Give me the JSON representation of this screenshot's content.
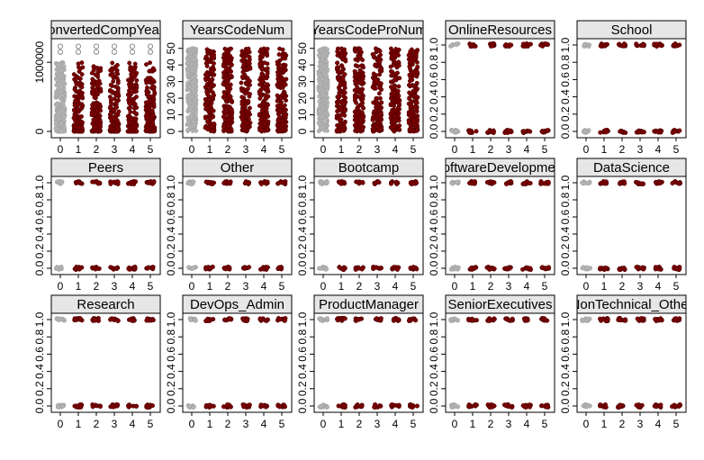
{
  "chart_data": {
    "type": "scatter",
    "layout": "3x5 small multiples",
    "x_ticks": [
      "0",
      "1",
      "2",
      "3",
      "4",
      "5"
    ],
    "colors": {
      "group0": "#b3b3b3",
      "groups1to5": "#7a0000",
      "strip": "#e6e6e6"
    },
    "panels": [
      {
        "title": "ConvertedCompYearly",
        "ylim": [
          0,
          1250000
        ],
        "ticks": [
          0,
          1000000
        ],
        "tick_labels": [
          "0",
          "1000000"
        ],
        "kind": "continuous",
        "max": 1000000,
        "outliers": [
          1150000,
          1230000
        ]
      },
      {
        "title": "YearsCodeNum",
        "ylim": [
          0,
          52
        ],
        "ticks": [
          0,
          10,
          20,
          30,
          40,
          50
        ],
        "tick_labels": [
          "0",
          "10",
          "20",
          "30",
          "40",
          "50"
        ],
        "kind": "continuous",
        "max": 50
      },
      {
        "title": "YearsCodeProNum",
        "ylim": [
          0,
          52
        ],
        "ticks": [
          0,
          10,
          20,
          30,
          40,
          50
        ],
        "tick_labels": [
          "0",
          "10",
          "20",
          "30",
          "40",
          "50"
        ],
        "kind": "continuous",
        "max": 50
      },
      {
        "title": "OnlineResources",
        "ylim": [
          0,
          1
        ],
        "ticks": [
          0,
          0.2,
          0.4,
          0.6,
          0.8,
          1
        ],
        "tick_labels": [
          "0.0",
          "0.2",
          "0.4",
          "0.6",
          "0.8",
          "1.0"
        ],
        "kind": "binary"
      },
      {
        "title": "School",
        "ylim": [
          0,
          1
        ],
        "ticks": [
          0,
          0.2,
          0.4,
          0.6,
          0.8,
          1
        ],
        "tick_labels": [
          "0.0",
          "0.2",
          "0.4",
          "0.6",
          "0.8",
          "1.0"
        ],
        "kind": "binary"
      },
      {
        "title": "Peers",
        "ylim": [
          0,
          1
        ],
        "ticks": [
          0,
          0.2,
          0.4,
          0.6,
          0.8,
          1
        ],
        "tick_labels": [
          "0.0",
          "0.2",
          "0.4",
          "0.6",
          "0.8",
          "1.0"
        ],
        "kind": "binary"
      },
      {
        "title": "Other",
        "ylim": [
          0,
          1
        ],
        "ticks": [
          0,
          0.2,
          0.4,
          0.6,
          0.8,
          1
        ],
        "tick_labels": [
          "0.0",
          "0.2",
          "0.4",
          "0.6",
          "0.8",
          "1.0"
        ],
        "kind": "binary"
      },
      {
        "title": "Bootcamp",
        "ylim": [
          0,
          1
        ],
        "ticks": [
          0,
          0.2,
          0.4,
          0.6,
          0.8,
          1
        ],
        "tick_labels": [
          "0.0",
          "0.2",
          "0.4",
          "0.6",
          "0.8",
          "1.0"
        ],
        "kind": "binary"
      },
      {
        "title": "SoftwareDevelopment",
        "ylim": [
          0,
          1
        ],
        "ticks": [
          0,
          0.2,
          0.4,
          0.6,
          0.8,
          1
        ],
        "tick_labels": [
          "0.0",
          "0.2",
          "0.4",
          "0.6",
          "0.8",
          "1.0"
        ],
        "kind": "binary"
      },
      {
        "title": "DataScience",
        "ylim": [
          0,
          1
        ],
        "ticks": [
          0,
          0.2,
          0.4,
          0.6,
          0.8,
          1
        ],
        "tick_labels": [
          "0.0",
          "0.2",
          "0.4",
          "0.6",
          "0.8",
          "1.0"
        ],
        "kind": "binary"
      },
      {
        "title": "Research",
        "ylim": [
          0,
          1
        ],
        "ticks": [
          0,
          0.2,
          0.4,
          0.6,
          0.8,
          1
        ],
        "tick_labels": [
          "0.0",
          "0.2",
          "0.4",
          "0.6",
          "0.8",
          "1.0"
        ],
        "kind": "binary"
      },
      {
        "title": "DevOps_Admin",
        "ylim": [
          0,
          1
        ],
        "ticks": [
          0,
          0.2,
          0.4,
          0.6,
          0.8,
          1
        ],
        "tick_labels": [
          "0.0",
          "0.2",
          "0.4",
          "0.6",
          "0.8",
          "1.0"
        ],
        "kind": "binary"
      },
      {
        "title": "ProductManager",
        "ylim": [
          0,
          1
        ],
        "ticks": [
          0,
          0.2,
          0.4,
          0.6,
          0.8,
          1
        ],
        "tick_labels": [
          "0.0",
          "0.2",
          "0.4",
          "0.6",
          "0.8",
          "1.0"
        ],
        "kind": "binary"
      },
      {
        "title": "SeniorExecutives",
        "ylim": [
          0,
          1
        ],
        "ticks": [
          0,
          0.2,
          0.4,
          0.6,
          0.8,
          1
        ],
        "tick_labels": [
          "0.0",
          "0.2",
          "0.4",
          "0.6",
          "0.8",
          "1.0"
        ],
        "kind": "binary"
      },
      {
        "title": "NonTechnical_Other",
        "ylim": [
          0,
          1
        ],
        "ticks": [
          0,
          0.2,
          0.4,
          0.6,
          0.8,
          1
        ],
        "tick_labels": [
          "0.0",
          "0.2",
          "0.4",
          "0.6",
          "0.8",
          "1.0"
        ],
        "kind": "binary"
      }
    ]
  }
}
